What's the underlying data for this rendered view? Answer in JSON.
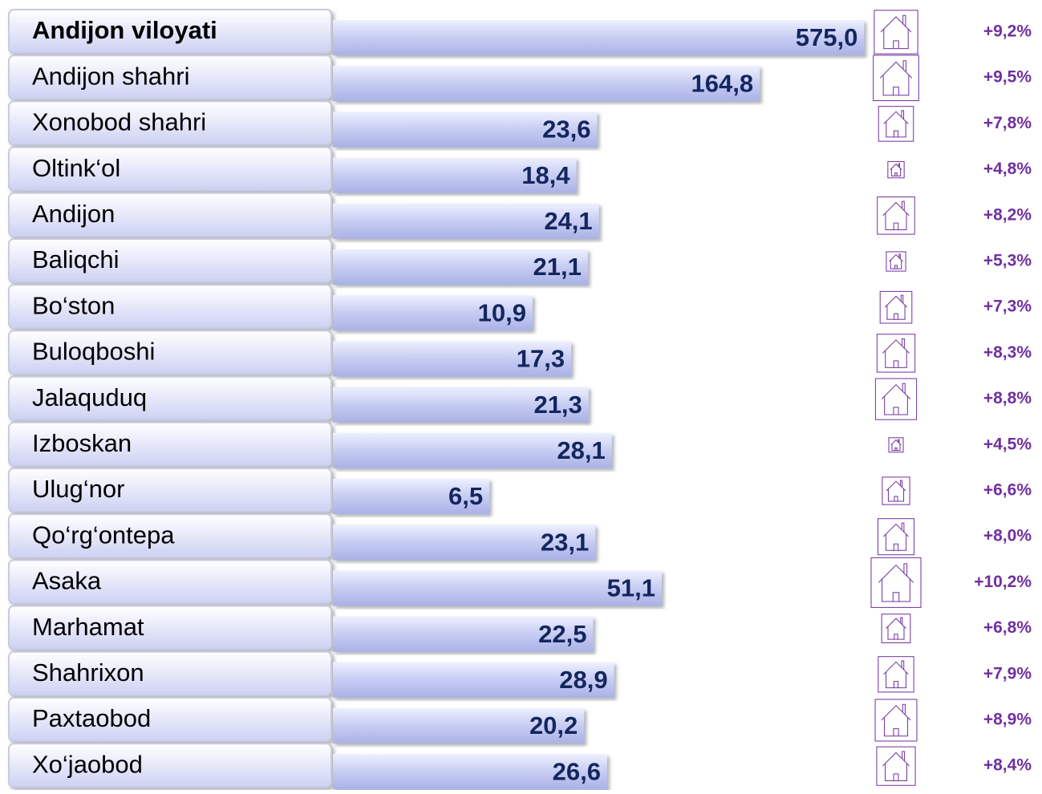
{
  "chart_data": {
    "type": "bar",
    "orientation": "horizontal",
    "log_scale": true,
    "xlim": [
      1,
      1000
    ],
    "color": "#c6ccf2",
    "categories": [
      "Andijon viloyati",
      "Andijon  shahri",
      "Xonobod shahri",
      "Oltink‘ol",
      "Andijon",
      "Baliqchi",
      "Bo‘ston",
      "Buloqboshi",
      "Jalaquduq",
      "Izboskan",
      "Ulug‘nor",
      "Qo‘rg‘ontepa",
      "Asaka",
      "Marhamat",
      "Shahrixon",
      "Paxtaobod",
      "Xo‘jaobod"
    ],
    "values": [
      575.0,
      164.8,
      23.6,
      18.4,
      24.1,
      21.1,
      10.9,
      17.3,
      21.3,
      28.1,
      6.5,
      23.1,
      51.1,
      22.5,
      28.9,
      20.2,
      26.6
    ],
    "value_labels": [
      "575,0",
      "164,8",
      "23,6",
      "18,4",
      "24,1",
      "21,1",
      "10,9",
      "17,3",
      "21,3",
      "28,1",
      "6,5",
      "23,1",
      "51,1",
      "22,5",
      "28,9",
      "20,2",
      "26,6"
    ],
    "growth": {
      "color": "#7030a0",
      "values": [
        9.2,
        9.5,
        7.8,
        4.8,
        8.2,
        5.3,
        7.3,
        8.3,
        8.8,
        4.5,
        6.6,
        8.0,
        10.2,
        6.8,
        7.9,
        8.9,
        8.4
      ],
      "value_labels": [
        "+9,2%",
        "+9,5%",
        "+7,8%",
        "+4,8%",
        "+8,2%",
        "+5,3%",
        "+7,3%",
        "+8,3%",
        "+8,8%",
        "+4,5%",
        "+6,6%",
        "+8,0%",
        "+10,2%",
        "+6,8%",
        "+7,9%",
        "+8,9%",
        "+8,4%"
      ]
    }
  }
}
